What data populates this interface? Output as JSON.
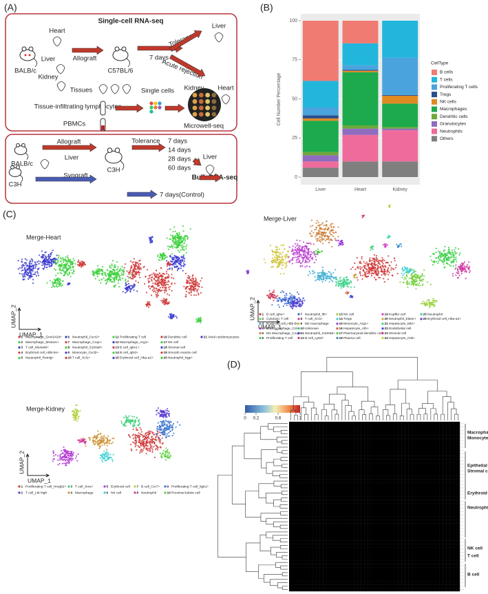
{
  "panel_a": {
    "label": "(A)",
    "title": "Single-cell RNA-seq",
    "top": {
      "heart": "Heart",
      "liver": "Liver",
      "kidney": "Kidney",
      "donor": "BALB/c",
      "allograft": "Allograft",
      "recipient": "C57BL/6",
      "days": "7 days",
      "tolerance": "Tolerance",
      "tol_organ": "Liver",
      "rejection": "Acute rejection",
      "rej_kidney": "Kidney",
      "rej_heart": "Heart",
      "tissues": "Tissues",
      "til": "Tissue-infiltrating lymphocytes",
      "single_cells": "Single cells",
      "pbmcs": "PBMCs",
      "microwell": "Microwell-seq"
    },
    "bottom": {
      "donor": "BALB/c",
      "allograft": "Allograft",
      "liver": "Liver",
      "c3h_donor": "C3H",
      "syngraft": "Syngraft",
      "recipient": "C3H",
      "tolerance": "Tolerance",
      "days": [
        "7 days",
        "14 days",
        "28 days",
        "60 days"
      ],
      "organ": "Liver",
      "bulk": "Bulk RNA-seq",
      "control": "7 days(Control)"
    }
  },
  "chart_data": {
    "type": "bar",
    "stacked": true,
    "panel_label": "(B)",
    "ylabel": "Cell Number Percentage",
    "legend_title": "CellType",
    "legend": "right",
    "grid": true,
    "categories": [
      "Liver",
      "Heart",
      "Kidney"
    ],
    "ylim": [
      0,
      100
    ],
    "yticks": [
      0,
      25,
      50,
      75,
      100
    ],
    "series": [
      {
        "name": "B cells",
        "color": "#f07b72",
        "values": [
          38.5,
          14.5,
          0
        ]
      },
      {
        "name": "T cells",
        "color": "#22b6dd",
        "values": [
          17,
          14,
          23.5
        ]
      },
      {
        "name": "Proliferating T cells",
        "color": "#4aa3dc",
        "values": [
          5,
          3,
          24
        ]
      },
      {
        "name": "Tregs",
        "color": "#2b4e8c",
        "values": [
          2,
          0.5,
          0.5
        ]
      },
      {
        "name": "NK cells",
        "color": "#e08a22",
        "values": [
          1.5,
          1,
          5
        ]
      },
      {
        "name": "Macrophages",
        "color": "#1daa4c",
        "values": [
          20,
          34,
          15
        ]
      },
      {
        "name": "Dendritic cells",
        "color": "#6ea83a",
        "values": [
          2,
          2,
          1
        ]
      },
      {
        "name": "Granulocytes",
        "color": "#8e6cc0",
        "values": [
          4,
          4,
          1
        ]
      },
      {
        "name": "Neutrophils",
        "color": "#ee6b9c",
        "values": [
          4,
          17,
          20
        ]
      },
      {
        "name": "Others",
        "color": "#7f7f7f",
        "values": [
          6,
          10,
          10
        ]
      }
    ]
  },
  "panel_c": {
    "label": "(C)",
    "heart": {
      "title": "Merge-Heart",
      "xlabel": "UMAP_1",
      "ylabel": "UMAP_2",
      "clusters": [
        [
          "1",
          "Macrophage_Gm42418+"
        ],
        [
          "2",
          "Macrophage_Ms4a4c+"
        ],
        [
          "3",
          "T cell_Ms4a4b+"
        ],
        [
          "4",
          "Erythroid cell_Hbb-bs+"
        ],
        [
          "5",
          "Neutrophil_Retnlg+"
        ],
        [
          "6",
          "Neutrophil_Cxcr2+"
        ],
        [
          "7",
          "Macrophage_C1qc+"
        ],
        [
          "8",
          "Neutrophil_S100a8+"
        ],
        [
          "9",
          "Monocyte_Cxcl2+"
        ],
        [
          "10",
          "T cell_Xcl1+"
        ],
        [
          "11",
          "Proliferating T cell"
        ],
        [
          "12",
          "Macrophage_Arg1+"
        ],
        [
          "13",
          "B cell_Igkv1+"
        ],
        [
          "14",
          "B cell_Ighd+"
        ],
        [
          "15",
          "Erythroid cell_Hba-a2+"
        ],
        [
          "16",
          "Dendritic cell"
        ],
        [
          "17",
          "NK cell"
        ],
        [
          "18",
          "Stromal cell"
        ],
        [
          "19",
          "Smooth muscle cell"
        ],
        [
          "20",
          "Neutrophil_Ngp+"
        ],
        [
          "21",
          "Atrial cardiomyocytes"
        ]
      ]
    },
    "liver": {
      "title": "Merge-Liver",
      "xlabel": "UMAP_1",
      "ylabel": "UMAP_2",
      "clusters": [
        [
          "1",
          "B cell_Ighe+"
        ],
        [
          "2",
          "Cytotoxic T cell"
        ],
        [
          "3",
          "Erythroid cell_Hbb-bs+"
        ],
        [
          "4",
          "M1 Macrophage_Ccl4+"
        ],
        [
          "5",
          "M1 Macrophage_C1qc+"
        ],
        [
          "6",
          "Proliferating T cell"
        ],
        [
          "7",
          "Neutrophil_Ifit+"
        ],
        [
          "8",
          "T cell_Xcl1+"
        ],
        [
          "9",
          "M2 macrophage"
        ],
        [
          "10",
          "Unknown"
        ],
        [
          "11",
          "Neutrophil_S100a8+"
        ],
        [
          "12",
          "B cell_Ly6d+"
        ],
        [
          "13",
          "NK cell"
        ],
        [
          "14",
          "Tregs"
        ],
        [
          "15",
          "Monocyte_Arg1+"
        ],
        [
          "16",
          "Hepatocyte_Alb+"
        ],
        [
          "17",
          "Plasmacytoid dendritic cell"
        ],
        [
          "18",
          "Plasma cell"
        ],
        [
          "19",
          "Kupffer cell"
        ],
        [
          "20",
          "Neutrophil_Elane+"
        ],
        [
          "21",
          "Hepatocyte_Mt2+"
        ],
        [
          "22",
          "Endothelial cell"
        ],
        [
          "23",
          "Stromal cell"
        ],
        [
          "24",
          "Hepatocyte_Ctsl+"
        ],
        [
          "25",
          "Neutrophil"
        ],
        [
          "26",
          "Erythroid cell_Hba-a2+"
        ]
      ]
    },
    "kidney": {
      "title": "Merge-Kidney",
      "xlabel": "UMAP_1",
      "ylabel": "UMAP_2",
      "clusters": [
        [
          "1",
          "Proliferating T cell_Hmgb2+"
        ],
        [
          "2",
          "T cell_Ltb high"
        ],
        [
          "3",
          "T cell_Sms+"
        ],
        [
          "4",
          "Macrophage"
        ],
        [
          "5",
          "Erythroid cell"
        ],
        [
          "6",
          "NK cell"
        ],
        [
          "7",
          "B cell_Ccr7+"
        ],
        [
          "8",
          "Neutrophil"
        ],
        [
          "9",
          "Proliferating T cell_Itgb1+"
        ],
        [
          "10",
          "Proximal tubule cell"
        ]
      ]
    }
  },
  "panel_d": {
    "label": "(D)",
    "colorbar_ticks": [
      0,
      0.2,
      0.6,
      1
    ],
    "groups": [
      "Macrophage",
      "Monocyte",
      "Epithelial cell",
      "Stromal cell",
      "Erythroid cell",
      "Neutrophil",
      "NK cell",
      "T cell",
      "B cell"
    ]
  }
}
